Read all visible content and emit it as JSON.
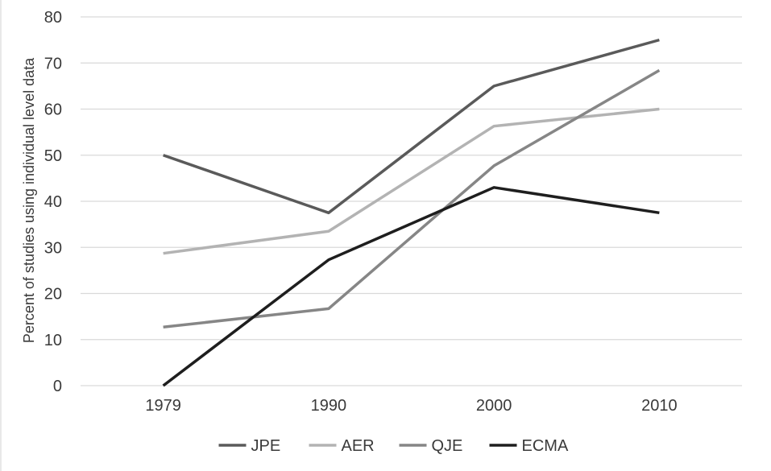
{
  "chart_data": {
    "type": "line",
    "title": "",
    "xlabel": "",
    "ylabel": "Percent of studies using individual level data",
    "categories": [
      "1979",
      "1990",
      "2000",
      "2010"
    ],
    "ylim": [
      0,
      80
    ],
    "yticks": [
      0,
      10,
      20,
      30,
      40,
      50,
      60,
      70,
      80
    ],
    "grid": true,
    "legend_position": "bottom",
    "series": [
      {
        "name": "JPE",
        "color": "#5a5a5a",
        "values": [
          50,
          37.5,
          65,
          75
        ]
      },
      {
        "name": "AER",
        "color": "#b3b3b3",
        "values": [
          28.7,
          33.5,
          56.3,
          60
        ]
      },
      {
        "name": "QJE",
        "color": "#868686",
        "values": [
          12.7,
          16.7,
          47.7,
          68.4
        ]
      },
      {
        "name": "ECMA",
        "color": "#1e1e1e",
        "values": [
          0,
          27.3,
          43,
          37.5
        ]
      }
    ]
  }
}
